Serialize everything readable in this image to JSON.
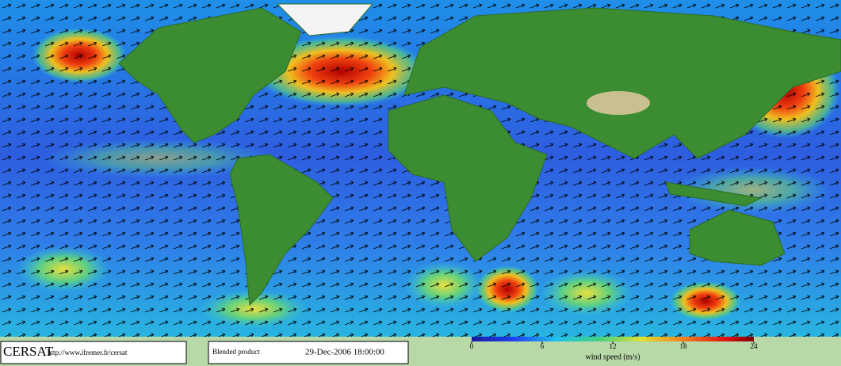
{
  "logo": "CERSAT",
  "url": "http://www.ifremer.fr/cersat",
  "product": "Blended product",
  "date": "29-Dec-2006 18:00:00",
  "colorbar": {
    "label": "wind speed (m/s)",
    "range": [
      0,
      24
    ],
    "ticks": [
      0,
      6,
      12,
      18,
      24
    ]
  }
}
